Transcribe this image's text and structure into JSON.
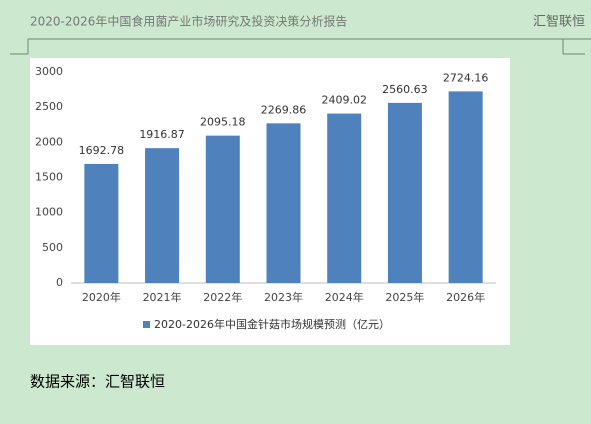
{
  "header": {
    "title": "2020-2026年中国食用菌产业市场研究及投资决策分析报告",
    "brand": "汇智联恒"
  },
  "chart_data": {
    "type": "bar",
    "categories": [
      "2020年",
      "2021年",
      "2022年",
      "2023年",
      "2024年",
      "2025年",
      "2026年"
    ],
    "series": [
      {
        "name": "2020-2026年中国金针菇市场规模预测（亿元）",
        "color": "#4f81bd",
        "values": [
          1692.78,
          1916.87,
          2095.18,
          2269.86,
          2409.02,
          2560.63,
          2724.16
        ]
      }
    ],
    "ylim": [
      0,
      3000
    ],
    "yticks": [
      0,
      500,
      1000,
      1500,
      2000,
      2500,
      3000
    ],
    "grid": false,
    "legend": "bottom"
  },
  "footer": {
    "source": "数据来源：汇智联恒"
  }
}
